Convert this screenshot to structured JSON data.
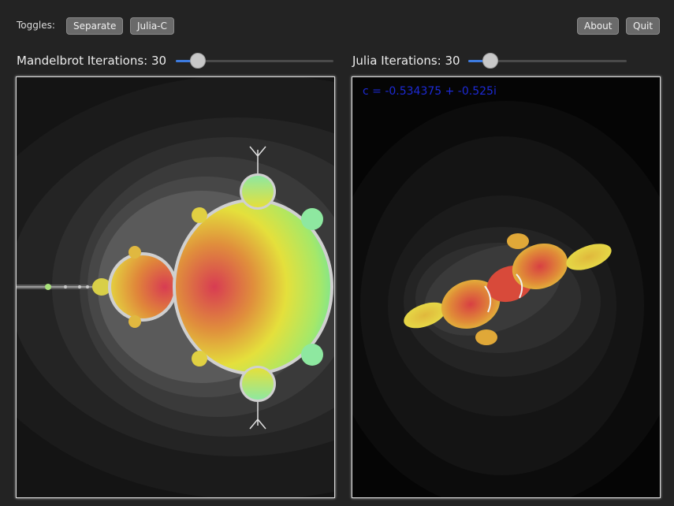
{
  "toolbar": {
    "toggles_label": "Toggles:",
    "separate_label": "Separate",
    "julia_c_label": "Julia-C",
    "about_label": "About",
    "quit_label": "Quit"
  },
  "mandelbrot": {
    "label": "Mandelbrot Iterations: 30",
    "iterations": 30,
    "slider_fraction": 0.1
  },
  "julia": {
    "label": "Julia Iterations: 30",
    "iterations": 30,
    "slider_fraction": 0.1,
    "c_readout": "c = -0.534375 + -0.525i",
    "c_re": -0.534375,
    "c_im": -0.525
  },
  "colors": {
    "background": "#232323",
    "accent": "#3d7be0",
    "c_readout": "#1d2ad6"
  }
}
